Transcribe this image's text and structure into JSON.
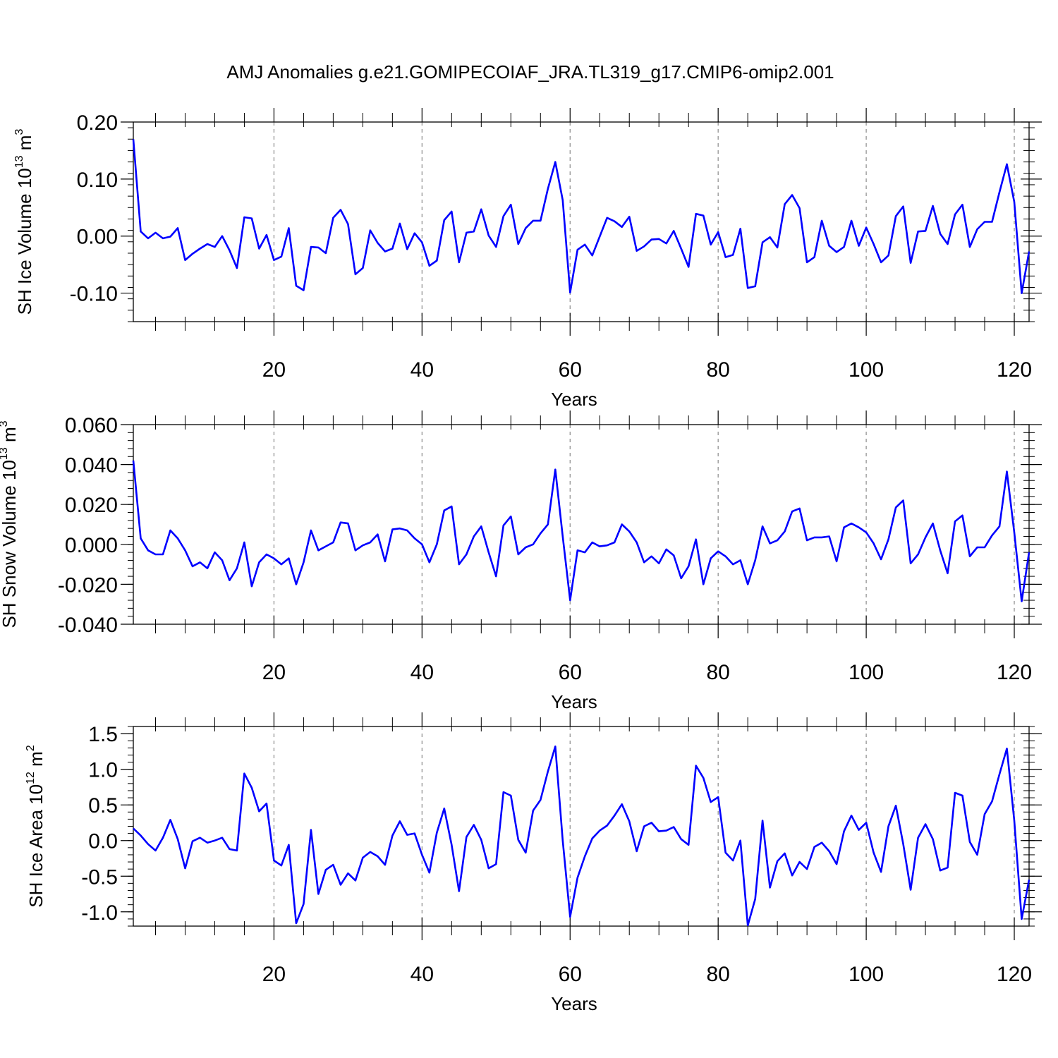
{
  "title": "AMJ Anomalies g.e21.GOMIPECOIAF_JRA.TL319_g17.CMIP6-omip2.001",
  "chart_data": [
    {
      "type": "line",
      "xlabel": "Years",
      "ylabel": {
        "prefix": "SH Ice Volume 10",
        "exp": "13",
        "unit": " m",
        "unit_exp": "3"
      },
      "xlim": [
        1,
        122
      ],
      "ylim": [
        -0.15,
        0.2
      ],
      "xticks": [
        20,
        40,
        60,
        80,
        100,
        120
      ],
      "xtick_labels": [
        "20",
        "40",
        "60",
        "80",
        "100",
        "120"
      ],
      "yticks": [
        -0.1,
        0.0,
        0.1,
        0.2
      ],
      "ytick_labels": [
        "-0.10",
        "0.00",
        "0.10",
        "0.20"
      ],
      "grid": "vertical dashed at x ticks",
      "line_color": "#0000ff",
      "series": [
        {
          "x_start": 1,
          "values": [
            0.17,
            0.008,
            -0.004,
            0.006,
            -0.004,
            -0.001,
            0.014,
            -0.042,
            -0.031,
            -0.022,
            -0.014,
            -0.019,
            0.0,
            -0.025,
            -0.056,
            0.033,
            0.031,
            -0.022,
            0.002,
            -0.042,
            -0.036,
            0.014,
            -0.087,
            -0.095,
            -0.019,
            -0.02,
            -0.03,
            0.032,
            0.046,
            0.021,
            -0.067,
            -0.056,
            0.01,
            -0.012,
            -0.027,
            -0.022,
            0.022,
            -0.023,
            0.005,
            -0.011,
            -0.052,
            -0.043,
            0.028,
            0.043,
            -0.046,
            0.006,
            0.008,
            0.047,
            0.001,
            -0.019,
            0.035,
            0.055,
            -0.014,
            0.014,
            0.027,
            0.027,
            0.083,
            0.13,
            0.063,
            -0.099,
            -0.024,
            -0.015,
            -0.034,
            -0.001,
            0.032,
            0.026,
            0.016,
            0.034,
            -0.026,
            -0.018,
            -0.006,
            -0.005,
            -0.013,
            0.009,
            -0.022,
            -0.054,
            0.039,
            0.036,
            -0.015,
            0.007,
            -0.037,
            -0.033,
            0.013,
            -0.091,
            -0.088,
            -0.011,
            -0.002,
            -0.02,
            0.056,
            0.072,
            0.049,
            -0.046,
            -0.037,
            0.027,
            -0.017,
            -0.028,
            -0.019,
            0.027,
            -0.017,
            0.015,
            -0.014,
            -0.046,
            -0.034,
            0.035,
            0.052,
            -0.047,
            0.008,
            0.009,
            0.053,
            0.004,
            -0.014,
            0.038,
            0.055,
            -0.019,
            0.012,
            0.025,
            0.025,
            0.077,
            0.126,
            0.06,
            -0.1,
            -0.027
          ]
        }
      ]
    },
    {
      "type": "line",
      "xlabel": "Years",
      "ylabel": {
        "prefix": "SH Snow Volume 10",
        "exp": "13",
        "unit": " m",
        "unit_exp": "3"
      },
      "xlim": [
        1,
        122
      ],
      "ylim": [
        -0.04,
        0.06
      ],
      "xticks": [
        20,
        40,
        60,
        80,
        100,
        120
      ],
      "xtick_labels": [
        "20",
        "40",
        "60",
        "80",
        "100",
        "120"
      ],
      "yticks": [
        -0.04,
        -0.02,
        0.0,
        0.02,
        0.04,
        0.06
      ],
      "ytick_labels": [
        "-0.040",
        "-0.020",
        "0.000",
        "0.020",
        "0.040",
        "0.060"
      ],
      "grid": "vertical dashed at x ticks",
      "line_color": "#0000ff",
      "series": [
        {
          "x_start": 1,
          "values": [
            0.042,
            0.003,
            -0.003,
            -0.005,
            -0.005,
            0.007,
            0.003,
            -0.003,
            -0.011,
            -0.009,
            -0.012,
            -0.004,
            -0.008,
            -0.018,
            -0.012,
            0.001,
            -0.021,
            -0.009,
            -0.005,
            -0.007,
            -0.01,
            -0.007,
            -0.02,
            -0.009,
            0.007,
            -0.003,
            -0.001,
            0.001,
            0.011,
            0.0105,
            -0.003,
            -0.0005,
            0.001,
            0.005,
            -0.0085,
            0.0075,
            0.008,
            0.007,
            0.003,
            0.0,
            -0.009,
            0.0,
            0.017,
            0.019,
            -0.01,
            -0.005,
            0.004,
            0.009,
            -0.004,
            -0.016,
            0.0095,
            0.014,
            -0.005,
            -0.0015,
            0.0,
            0.0055,
            0.01,
            0.0375,
            0.004,
            -0.028,
            -0.003,
            -0.004,
            0.001,
            -0.001,
            -0.0005,
            0.001,
            0.01,
            0.0065,
            0.001,
            -0.009,
            -0.006,
            -0.0095,
            -0.0025,
            -0.0055,
            -0.017,
            -0.011,
            0.0025,
            -0.02,
            -0.007,
            -0.0035,
            -0.006,
            -0.01,
            -0.008,
            -0.02,
            -0.008,
            0.009,
            0.0005,
            0.002,
            0.0065,
            0.0165,
            0.018,
            0.002,
            0.0035,
            0.0035,
            0.004,
            -0.0085,
            0.0085,
            0.0105,
            0.0085,
            0.006,
            0.0005,
            -0.0075,
            0.0025,
            0.0185,
            0.022,
            -0.0095,
            -0.005,
            0.0035,
            0.0105,
            -0.003,
            -0.0145,
            0.0115,
            0.0145,
            -0.006,
            -0.0015,
            -0.0015,
            0.0045,
            0.009,
            0.0365,
            0.006,
            -0.0285,
            -0.004
          ]
        }
      ]
    },
    {
      "type": "line",
      "xlabel": "Years",
      "ylabel": {
        "prefix": "SH Ice Area 10",
        "exp": "12",
        "unit": " m",
        "unit_exp": "2"
      },
      "xlim": [
        1,
        122
      ],
      "ylim": [
        -1.2,
        1.6
      ],
      "xticks": [
        20,
        40,
        60,
        80,
        100,
        120
      ],
      "xtick_labels": [
        "20",
        "40",
        "60",
        "80",
        "100",
        "120"
      ],
      "yticks": [
        -1.0,
        -0.5,
        0.0,
        0.5,
        1.0,
        1.5
      ],
      "ytick_labels": [
        "-1.0",
        "-0.5",
        "0.0",
        "0.5",
        "1.0",
        "1.5"
      ],
      "grid": "vertical dashed at x ticks",
      "line_color": "#0000ff",
      "series": [
        {
          "x_start": 1,
          "values": [
            0.17,
            0.07,
            -0.05,
            -0.14,
            0.04,
            0.29,
            0.02,
            -0.39,
            -0.01,
            0.04,
            -0.03,
            0.0,
            0.04,
            -0.12,
            -0.14,
            0.94,
            0.74,
            0.41,
            0.52,
            -0.28,
            -0.35,
            -0.06,
            -1.16,
            -0.89,
            0.15,
            -0.75,
            -0.41,
            -0.34,
            -0.62,
            -0.46,
            -0.56,
            -0.24,
            -0.16,
            -0.22,
            -0.34,
            0.07,
            0.27,
            0.08,
            0.1,
            -0.2,
            -0.45,
            0.11,
            0.45,
            -0.06,
            -0.71,
            0.05,
            0.22,
            0.01,
            -0.39,
            -0.33,
            0.68,
            0.63,
            0.01,
            -0.17,
            0.42,
            0.57,
            0.97,
            1.32,
            0.0,
            -1.07,
            -0.52,
            -0.22,
            0.03,
            0.14,
            0.21,
            0.35,
            0.51,
            0.27,
            -0.15,
            0.2,
            0.25,
            0.13,
            0.14,
            0.19,
            0.02,
            -0.06,
            1.05,
            0.88,
            0.54,
            0.61,
            -0.17,
            -0.28,
            0.0,
            -1.19,
            -0.82,
            0.28,
            -0.66,
            -0.29,
            -0.18,
            -0.49,
            -0.3,
            -0.4,
            -0.09,
            -0.03,
            -0.15,
            -0.33,
            0.13,
            0.35,
            0.15,
            0.25,
            -0.17,
            -0.44,
            0.2,
            0.49,
            -0.05,
            -0.69,
            0.04,
            0.23,
            0.02,
            -0.42,
            -0.38,
            0.67,
            0.63,
            -0.02,
            -0.2,
            0.37,
            0.55,
            0.93,
            1.29,
            0.28,
            -1.1,
            -0.55
          ]
        }
      ]
    }
  ]
}
